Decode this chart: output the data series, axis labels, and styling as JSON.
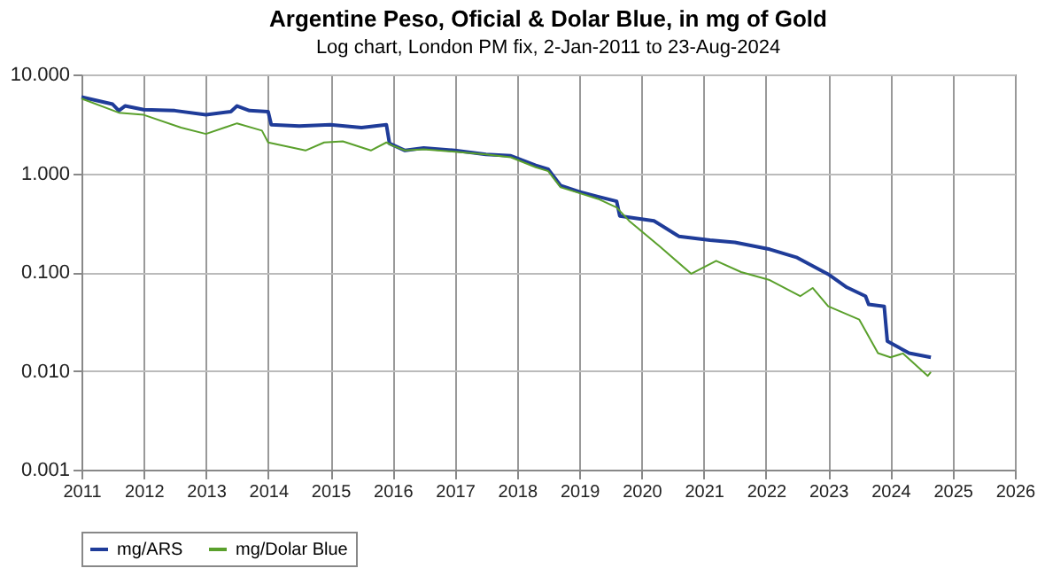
{
  "chart_data": {
    "type": "line",
    "title": "Argentine Peso, Oficial & Dolar Blue, in mg of Gold",
    "subtitle": "Log chart, London PM fix, 2-Jan-2011 to 23-Aug-2024",
    "log": "y",
    "grid": true,
    "legend": "bottom",
    "marker": "none",
    "line_style": "solid",
    "xlim": [
      2011,
      2026
    ],
    "xticks": [
      2011,
      2012,
      2013,
      2014,
      2015,
      2016,
      2017,
      2018,
      2019,
      2020,
      2021,
      2022,
      2023,
      2024,
      2025,
      2026
    ],
    "ylim": [
      0.001,
      10
    ],
    "yticks": [
      {
        "value": 0.001,
        "label": "0.001"
      },
      {
        "value": 0.01,
        "label": "0.010"
      },
      {
        "value": 0.1,
        "label": "0.100"
      },
      {
        "value": 1,
        "label": "1.000"
      },
      {
        "value": 10,
        "label": "10.000"
      }
    ],
    "series": [
      {
        "name": "mg/ARS",
        "color": "#1f3c99",
        "x": [
          2011.0,
          2011.5,
          2011.6,
          2011.7,
          2012.0,
          2012.5,
          2013.0,
          2013.4,
          2013.5,
          2013.7,
          2014.0,
          2014.05,
          2014.5,
          2015.0,
          2015.5,
          2015.9,
          2015.95,
          2016.2,
          2016.5,
          2017.0,
          2017.5,
          2017.9,
          2018.3,
          2018.5,
          2018.7,
          2019.0,
          2019.3,
          2019.6,
          2019.65,
          2020.2,
          2020.6,
          2021.1,
          2021.5,
          2022.06,
          2022.5,
          2023.0,
          2023.3,
          2023.6,
          2023.65,
          2023.9,
          2023.95,
          2024.3,
          2024.65
        ],
        "values": [
          5.9,
          5.0,
          4.3,
          4.8,
          4.4,
          4.3,
          3.9,
          4.2,
          4.8,
          4.3,
          4.2,
          3.1,
          3.0,
          3.1,
          2.9,
          3.1,
          2.0,
          1.7,
          1.8,
          1.7,
          1.55,
          1.5,
          1.2,
          1.1,
          0.75,
          0.65,
          0.58,
          0.52,
          0.37,
          0.33,
          0.23,
          0.21,
          0.2,
          0.17,
          0.14,
          0.095,
          0.07,
          0.057,
          0.047,
          0.045,
          0.02,
          0.0151,
          0.0137
        ]
      },
      {
        "name": "mg/Dolar Blue",
        "color": "#5aa02c",
        "x": [
          2011.0,
          2011.6,
          2012.0,
          2012.6,
          2013.0,
          2013.5,
          2013.9,
          2014.0,
          2014.6,
          2014.9,
          2015.2,
          2015.65,
          2015.9,
          2016.0,
          2016.2,
          2016.5,
          2017.0,
          2017.5,
          2017.9,
          2018.3,
          2018.5,
          2018.7,
          2019.0,
          2019.3,
          2019.6,
          2019.8,
          2020.3,
          2020.8,
          2021.2,
          2021.6,
          2022.06,
          2022.55,
          2022.75,
          2023.0,
          2023.5,
          2023.8,
          2024.0,
          2024.2,
          2024.6,
          2024.65
        ],
        "values": [
          5.7,
          4.1,
          3.9,
          2.9,
          2.5,
          3.2,
          2.7,
          2.05,
          1.7,
          2.05,
          2.1,
          1.7,
          2.05,
          1.9,
          1.7,
          1.75,
          1.65,
          1.55,
          1.45,
          1.15,
          1.05,
          0.72,
          0.63,
          0.55,
          0.45,
          0.33,
          0.18,
          0.096,
          0.13,
          0.1,
          0.083,
          0.057,
          0.069,
          0.045,
          0.033,
          0.0151,
          0.0137,
          0.015,
          0.0089,
          0.0097
        ]
      }
    ]
  }
}
